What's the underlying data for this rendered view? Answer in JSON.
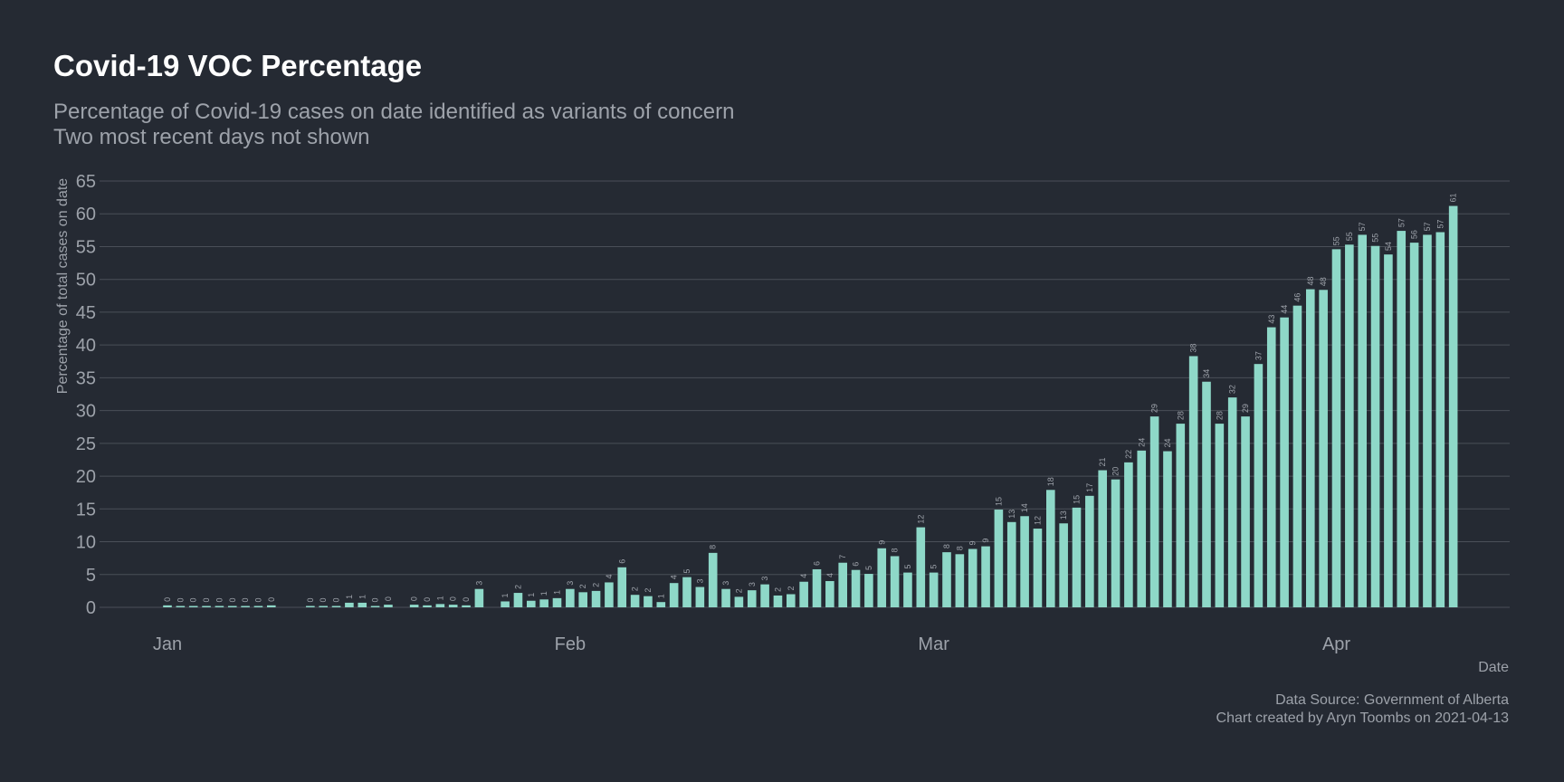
{
  "title": "Covid-19 VOC Percentage",
  "subtitle_lines": [
    "Percentage of Covid-19 cases on date identified as variants of concern",
    "Two most recent days not shown"
  ],
  "caption_lines": [
    "Data Source: Government of Alberta",
    "Chart created by Aryn Toombs on 2021-04-13"
  ],
  "colors": {
    "background": "#252a33",
    "bar": "#8ed8c8",
    "grid": "#4a4f58",
    "text": "#9da2aa",
    "title": "#ffffff"
  },
  "chart_data": {
    "type": "bar",
    "title": "Covid-19 VOC Percentage",
    "xlabel": "Date",
    "ylabel": "Percentage of total cases on date",
    "ylim": [
      0,
      65
    ],
    "yticks": [
      0,
      5,
      10,
      15,
      20,
      25,
      30,
      35,
      40,
      45,
      50,
      55,
      60,
      65
    ],
    "grid": true,
    "month_ticks": [
      {
        "label": "Jan",
        "date": "2021-01-01"
      },
      {
        "label": "Feb",
        "date": "2021-02-01"
      },
      {
        "label": "Mar",
        "date": "2021-03-01"
      },
      {
        "label": "Apr",
        "date": "2021-04-01"
      }
    ],
    "bar_labels": "rounded values shown vertically above each bar",
    "points": [
      {
        "date": "2021-01-01",
        "value": 0.3,
        "label": "0"
      },
      {
        "date": "2021-01-02",
        "value": 0.2,
        "label": "0"
      },
      {
        "date": "2021-01-03",
        "value": 0.2,
        "label": "0"
      },
      {
        "date": "2021-01-04",
        "value": 0.1,
        "label": "0"
      },
      {
        "date": "2021-01-05",
        "value": 0.1,
        "label": "0"
      },
      {
        "date": "2021-01-06",
        "value": 0.1,
        "label": "0"
      },
      {
        "date": "2021-01-07",
        "value": 0.2,
        "label": "0"
      },
      {
        "date": "2021-01-08",
        "value": 0.1,
        "label": "0"
      },
      {
        "date": "2021-01-09",
        "value": 0.3,
        "label": "0"
      },
      {
        "date": "2021-01-12",
        "value": 0.2,
        "label": "0"
      },
      {
        "date": "2021-01-13",
        "value": 0.1,
        "label": "0"
      },
      {
        "date": "2021-01-14",
        "value": 0.2,
        "label": "0"
      },
      {
        "date": "2021-01-15",
        "value": 0.7,
        "label": "1"
      },
      {
        "date": "2021-01-16",
        "value": 0.7,
        "label": "1"
      },
      {
        "date": "2021-01-17",
        "value": 0.2,
        "label": "0"
      },
      {
        "date": "2021-01-18",
        "value": 0.4,
        "label": "0"
      },
      {
        "date": "2021-01-20",
        "value": 0.4,
        "label": "0"
      },
      {
        "date": "2021-01-21",
        "value": 0.3,
        "label": "0"
      },
      {
        "date": "2021-01-22",
        "value": 0.5,
        "label": "1"
      },
      {
        "date": "2021-01-23",
        "value": 0.4,
        "label": "0"
      },
      {
        "date": "2021-01-24",
        "value": 0.3,
        "label": "0"
      },
      {
        "date": "2021-01-25",
        "value": 2.8,
        "label": "3"
      },
      {
        "date": "2021-01-27",
        "value": 0.9,
        "label": "1"
      },
      {
        "date": "2021-01-28",
        "value": 2.2,
        "label": "2"
      },
      {
        "date": "2021-01-29",
        "value": 1.0,
        "label": "1"
      },
      {
        "date": "2021-01-30",
        "value": 1.2,
        "label": "1"
      },
      {
        "date": "2021-01-31",
        "value": 1.4,
        "label": "1"
      },
      {
        "date": "2021-02-01",
        "value": 2.8,
        "label": "3"
      },
      {
        "date": "2021-02-02",
        "value": 2.3,
        "label": "2"
      },
      {
        "date": "2021-02-03",
        "value": 2.5,
        "label": "2"
      },
      {
        "date": "2021-02-04",
        "value": 3.8,
        "label": "4"
      },
      {
        "date": "2021-02-05",
        "value": 6.1,
        "label": "6"
      },
      {
        "date": "2021-02-06",
        "value": 1.9,
        "label": "2"
      },
      {
        "date": "2021-02-07",
        "value": 1.7,
        "label": "2"
      },
      {
        "date": "2021-02-08",
        "value": 0.8,
        "label": "1"
      },
      {
        "date": "2021-02-09",
        "value": 3.7,
        "label": "4"
      },
      {
        "date": "2021-02-10",
        "value": 4.6,
        "label": "5"
      },
      {
        "date": "2021-02-11",
        "value": 3.1,
        "label": "3"
      },
      {
        "date": "2021-02-12",
        "value": 8.3,
        "label": "8"
      },
      {
        "date": "2021-02-13",
        "value": 2.8,
        "label": "3"
      },
      {
        "date": "2021-02-14",
        "value": 1.6,
        "label": "2"
      },
      {
        "date": "2021-02-15",
        "value": 2.6,
        "label": "3"
      },
      {
        "date": "2021-02-16",
        "value": 3.5,
        "label": "3"
      },
      {
        "date": "2021-02-17",
        "value": 1.8,
        "label": "2"
      },
      {
        "date": "2021-02-18",
        "value": 2.0,
        "label": "2"
      },
      {
        "date": "2021-02-19",
        "value": 3.9,
        "label": "4"
      },
      {
        "date": "2021-02-20",
        "value": 5.8,
        "label": "6"
      },
      {
        "date": "2021-02-21",
        "value": 4.0,
        "label": "4"
      },
      {
        "date": "2021-02-22",
        "value": 6.8,
        "label": "7"
      },
      {
        "date": "2021-02-23",
        "value": 5.7,
        "label": "6"
      },
      {
        "date": "2021-02-24",
        "value": 5.1,
        "label": "5"
      },
      {
        "date": "2021-02-25",
        "value": 9.0,
        "label": "9"
      },
      {
        "date": "2021-02-26",
        "value": 7.8,
        "label": "8"
      },
      {
        "date": "2021-02-27",
        "value": 5.3,
        "label": "5"
      },
      {
        "date": "2021-02-28",
        "value": 12.2,
        "label": "12"
      },
      {
        "date": "2021-03-01",
        "value": 5.3,
        "label": "5"
      },
      {
        "date": "2021-03-02",
        "value": 8.4,
        "label": "8"
      },
      {
        "date": "2021-03-03",
        "value": 8.1,
        "label": "8"
      },
      {
        "date": "2021-03-04",
        "value": 8.9,
        "label": "9"
      },
      {
        "date": "2021-03-05",
        "value": 9.3,
        "label": "9"
      },
      {
        "date": "2021-03-06",
        "value": 14.9,
        "label": "15"
      },
      {
        "date": "2021-03-07",
        "value": 13.0,
        "label": "13"
      },
      {
        "date": "2021-03-08",
        "value": 13.9,
        "label": "14"
      },
      {
        "date": "2021-03-09",
        "value": 12.0,
        "label": "12"
      },
      {
        "date": "2021-03-10",
        "value": 17.9,
        "label": "18"
      },
      {
        "date": "2021-03-11",
        "value": 12.8,
        "label": "13"
      },
      {
        "date": "2021-03-12",
        "value": 15.2,
        "label": "15"
      },
      {
        "date": "2021-03-13",
        "value": 17.0,
        "label": "17"
      },
      {
        "date": "2021-03-14",
        "value": 20.9,
        "label": "21"
      },
      {
        "date": "2021-03-15",
        "value": 19.5,
        "label": "20"
      },
      {
        "date": "2021-03-16",
        "value": 22.1,
        "label": "22"
      },
      {
        "date": "2021-03-17",
        "value": 23.9,
        "label": "24"
      },
      {
        "date": "2021-03-18",
        "value": 29.1,
        "label": "29"
      },
      {
        "date": "2021-03-19",
        "value": 23.8,
        "label": "24"
      },
      {
        "date": "2021-03-20",
        "value": 28.0,
        "label": "28"
      },
      {
        "date": "2021-03-21",
        "value": 38.3,
        "label": "38"
      },
      {
        "date": "2021-03-22",
        "value": 34.4,
        "label": "34"
      },
      {
        "date": "2021-03-23",
        "value": 28.0,
        "label": "28"
      },
      {
        "date": "2021-03-24",
        "value": 32.0,
        "label": "32"
      },
      {
        "date": "2021-03-25",
        "value": 29.1,
        "label": "29"
      },
      {
        "date": "2021-03-26",
        "value": 37.1,
        "label": "37"
      },
      {
        "date": "2021-03-27",
        "value": 42.7,
        "label": "43"
      },
      {
        "date": "2021-03-28",
        "value": 44.2,
        "label": "44"
      },
      {
        "date": "2021-03-29",
        "value": 46.0,
        "label": "46"
      },
      {
        "date": "2021-03-30",
        "value": 48.5,
        "label": "48"
      },
      {
        "date": "2021-03-31",
        "value": 48.4,
        "label": "48"
      },
      {
        "date": "2021-04-01",
        "value": 54.6,
        "label": "55"
      },
      {
        "date": "2021-04-02",
        "value": 55.3,
        "label": "55"
      },
      {
        "date": "2021-04-03",
        "value": 56.8,
        "label": "57"
      },
      {
        "date": "2021-04-04",
        "value": 55.1,
        "label": "55"
      },
      {
        "date": "2021-04-05",
        "value": 53.8,
        "label": "54"
      },
      {
        "date": "2021-04-06",
        "value": 57.4,
        "label": "57"
      },
      {
        "date": "2021-04-07",
        "value": 55.6,
        "label": "56"
      },
      {
        "date": "2021-04-08",
        "value": 56.8,
        "label": "57"
      },
      {
        "date": "2021-04-09",
        "value": 57.2,
        "label": "57"
      },
      {
        "date": "2021-04-10",
        "value": 61.2,
        "label": "61"
      }
    ]
  }
}
